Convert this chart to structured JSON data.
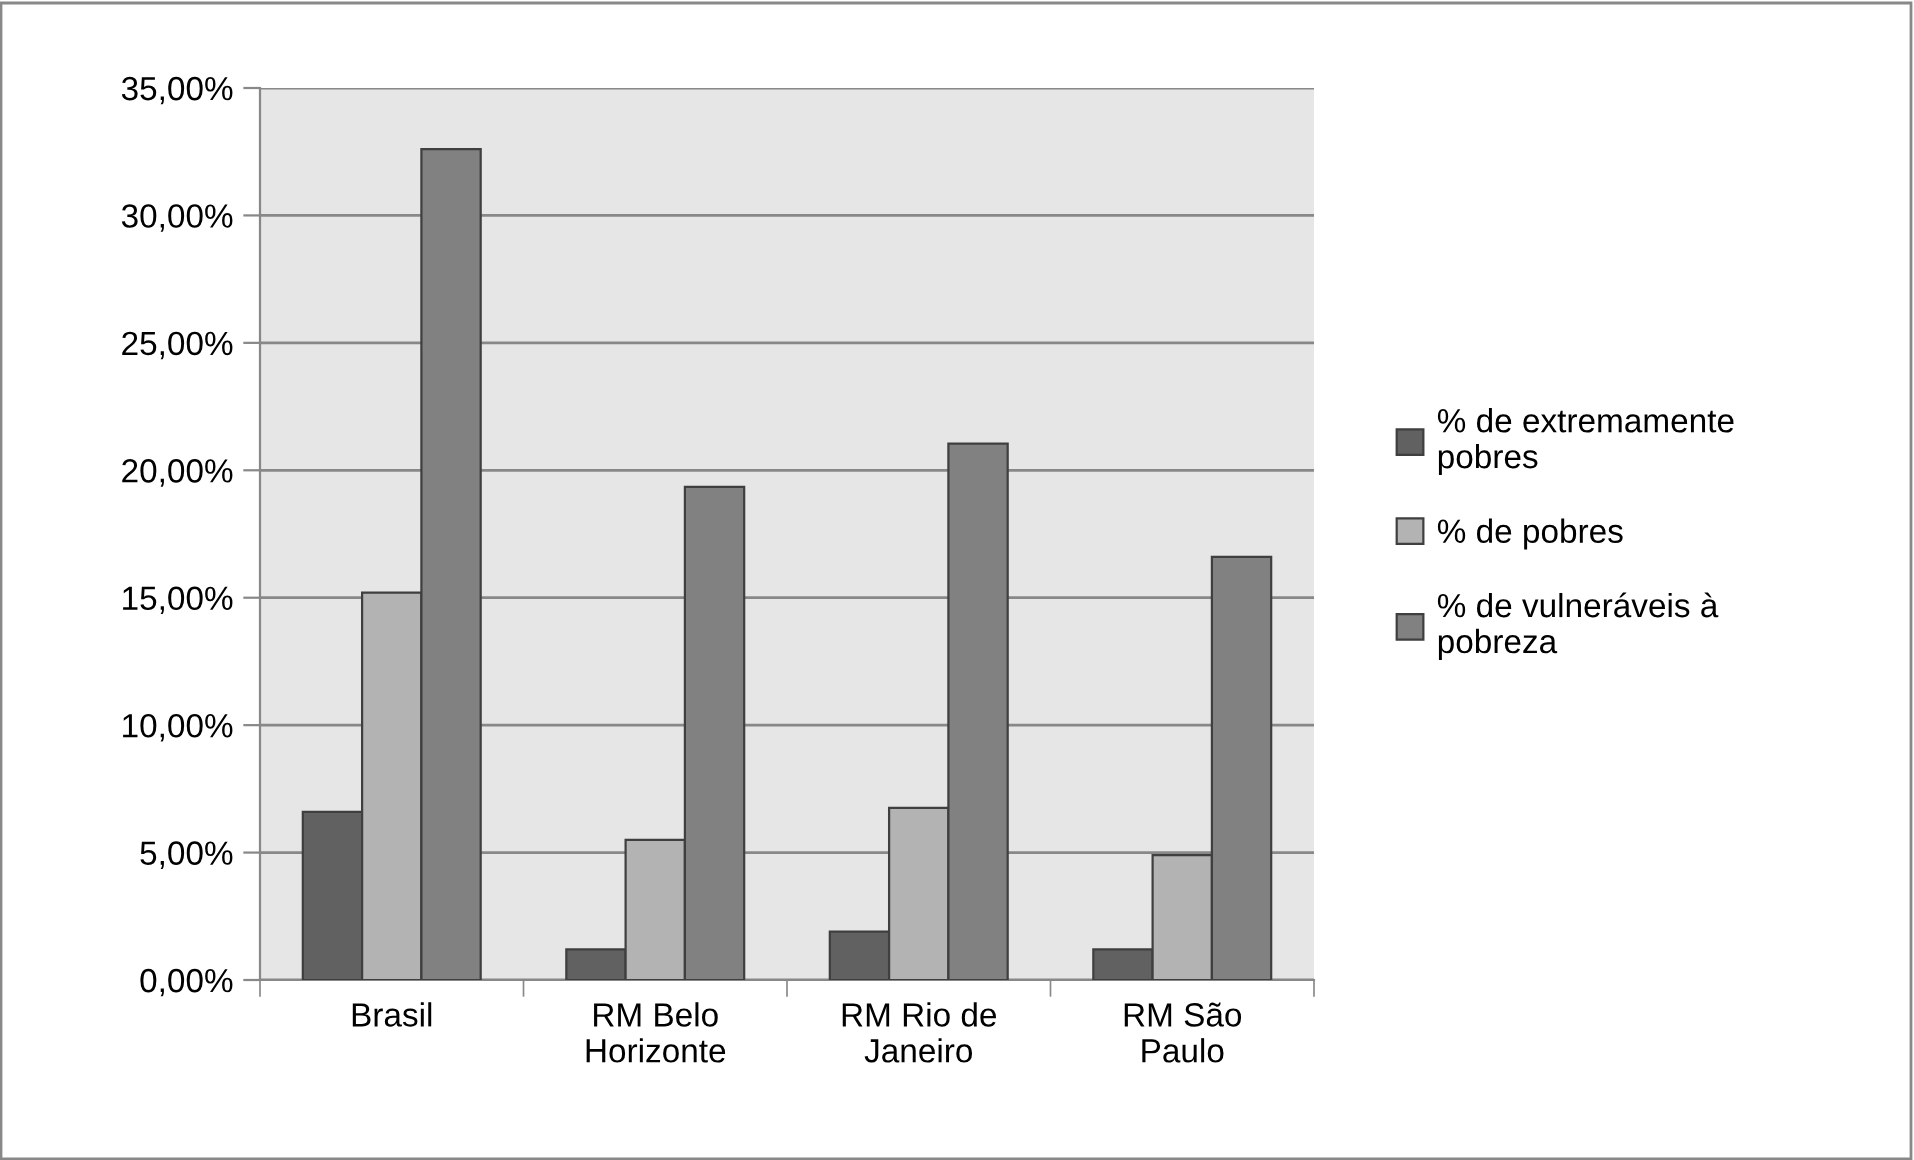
{
  "chart_data": {
    "type": "bar",
    "categories": [
      "Brasil",
      "RM Belo\nHorizonte",
      "RM Rio de\nJaneiro",
      "RM São\nPaulo"
    ],
    "series": [
      {
        "name": "% de extremamente\npobres",
        "color": "#616161",
        "values": [
          6.6,
          1.2,
          1.9,
          1.2
        ]
      },
      {
        "name": "% de pobres",
        "color": "#b3b3b3",
        "values": [
          15.2,
          5.5,
          6.75,
          4.9
        ]
      },
      {
        "name": "% de vulneráveis à\npobreza",
        "color": "#818181",
        "values": [
          32.6,
          19.35,
          21.05,
          16.6
        ]
      }
    ],
    "ylim": [
      0,
      35
    ],
    "yticks": [
      {
        "value": 0,
        "label": "0,00%"
      },
      {
        "value": 5,
        "label": "5,00%"
      },
      {
        "value": 10,
        "label": "10,00%"
      },
      {
        "value": 15,
        "label": "15,00%"
      },
      {
        "value": 20,
        "label": "20,00%"
      },
      {
        "value": 25,
        "label": "25,00%"
      },
      {
        "value": 30,
        "label": "30,00%"
      },
      {
        "value": 35,
        "label": "35,00%"
      }
    ],
    "grid": "y",
    "legend": "right"
  }
}
